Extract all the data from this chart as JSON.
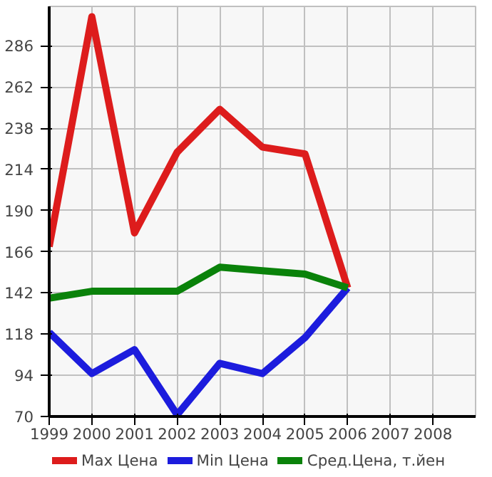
{
  "chart_data": {
    "type": "line",
    "x": [
      1999,
      2000,
      2001,
      2002,
      2003,
      2004,
      2005,
      2006
    ],
    "series": [
      {
        "name": "Max Цена",
        "color": "#dd1c1c",
        "values": [
          169,
          303,
          177,
          224,
          249,
          227,
          223,
          145
        ]
      },
      {
        "name": "Min Цена",
        "color": "#1c1cdd",
        "values": [
          119,
          95,
          109,
          71,
          101,
          95,
          116,
          145
        ]
      },
      {
        "name": "Сред.Цена, т.йен",
        "color": "#0a820a",
        "values": [
          139,
          143,
          143,
          143,
          157,
          155,
          153,
          145
        ]
      }
    ],
    "xlim": [
      1999,
      2009
    ],
    "xticks": [
      1999,
      2000,
      2001,
      2002,
      2003,
      2004,
      2005,
      2006,
      2007,
      2008
    ],
    "ylim": [
      70,
      309
    ],
    "yticks": [
      70,
      94,
      118,
      142,
      166,
      190,
      214,
      238,
      262,
      286
    ],
    "grid": true,
    "legend": "bottom",
    "marker": "none",
    "line_style": "solid"
  }
}
